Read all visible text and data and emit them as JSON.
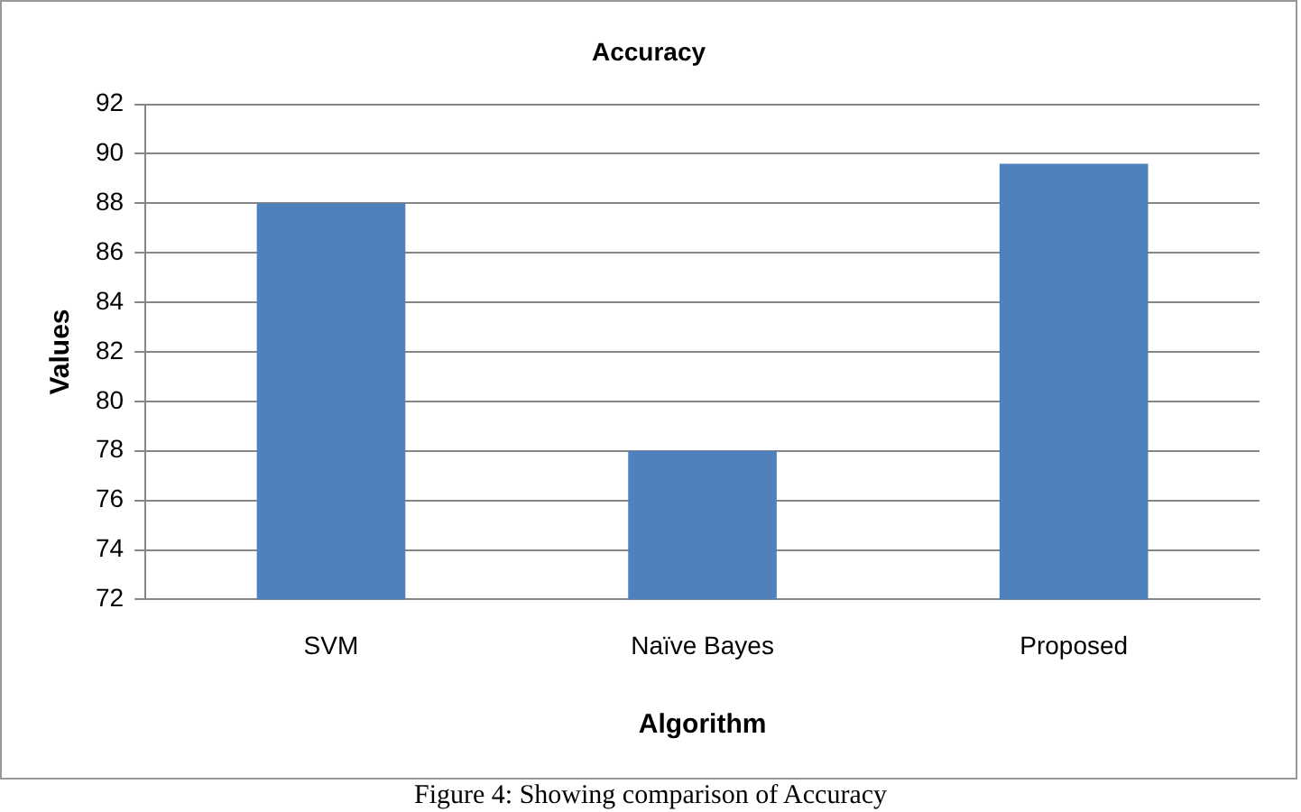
{
  "chart_data": {
    "type": "bar",
    "title": "Accuracy",
    "xlabel": "Algorithm",
    "ylabel": "Values",
    "categories": [
      "SVM",
      "Naïve Bayes",
      "Proposed"
    ],
    "values": [
      88,
      78,
      89.6
    ],
    "color": "#4f81bd",
    "ylim": [
      72,
      92
    ],
    "yticks": [
      72,
      74,
      76,
      78,
      80,
      82,
      84,
      86,
      88,
      90,
      92
    ],
    "grid": "y",
    "legend": false,
    "annotations": [
      "Figure 4: Showing comparison of Accuracy"
    ]
  }
}
